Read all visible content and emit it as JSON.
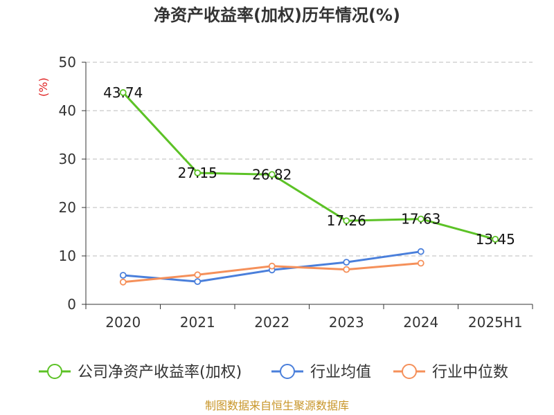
{
  "chart_data": {
    "type": "line",
    "title": "净资产收益率(加权)历年情况(%)",
    "ylabel": "(%)",
    "ylim": [
      0,
      50
    ],
    "yticks": [
      0,
      10,
      20,
      30,
      40,
      50
    ],
    "categories": [
      "2020",
      "2021",
      "2022",
      "2023",
      "2024",
      "2025H1"
    ],
    "grid": true,
    "legend_position": "bottom",
    "series": [
      {
        "name": "公司净资产收益率(加权)",
        "color": "#5cc226",
        "values": [
          43.74,
          27.15,
          26.82,
          17.26,
          17.63,
          13.45
        ],
        "labels": [
          "43.74",
          "27.15",
          "26.82",
          "17.26",
          "17.63",
          "13.45"
        ]
      },
      {
        "name": "行业均值",
        "color": "#4a7fdb",
        "values": [
          6.0,
          4.7,
          7.1,
          8.7,
          10.9,
          null
        ]
      },
      {
        "name": "行业中位数",
        "color": "#f5905a",
        "values": [
          4.6,
          6.1,
          7.9,
          7.2,
          8.5,
          null
        ]
      }
    ],
    "source": "制图数据来自恒生聚源数据库"
  }
}
